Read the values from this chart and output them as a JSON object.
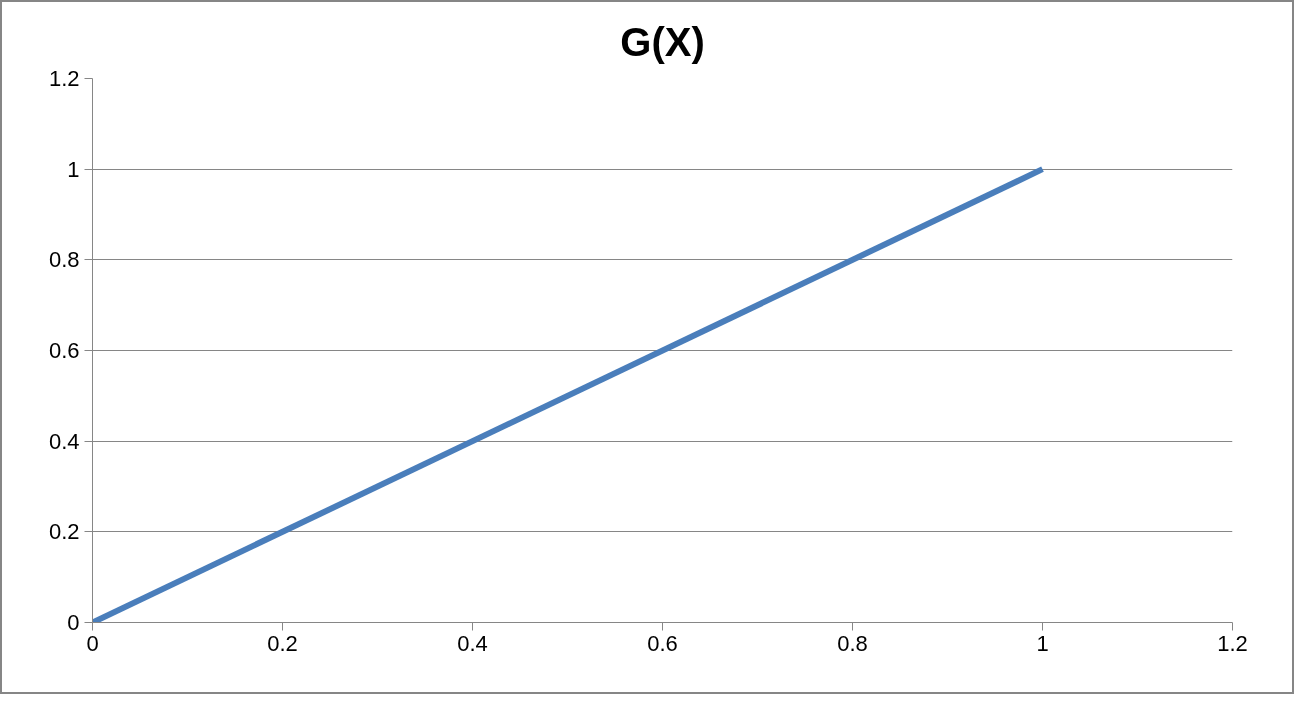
{
  "chart_data": {
    "type": "line",
    "title": "G(X)",
    "x": [
      0,
      1
    ],
    "series": [
      {
        "color": "#4a7ebb",
        "values": [
          0,
          1
        ]
      }
    ],
    "xlim": [
      0,
      1.2
    ],
    "xticks": [
      0,
      0.2,
      0.4,
      0.6,
      0.8,
      1,
      1.2
    ],
    "ylim": [
      0,
      1.2
    ],
    "yticks": [
      0,
      0.2,
      0.4,
      0.6,
      0.8,
      1,
      1.2
    ],
    "grid": "y",
    "marker": "none",
    "line_style": "solid"
  }
}
